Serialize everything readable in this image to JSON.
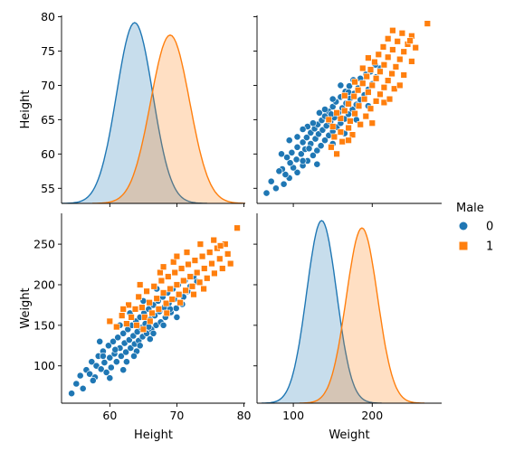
{
  "chart_data": {
    "type": "scatter",
    "kind": "pairplot",
    "variables": [
      "Height",
      "Weight"
    ],
    "hue": "Male",
    "legend": {
      "title": "Male",
      "placement": "right",
      "entries": [
        {
          "label": "0",
          "marker": "circle",
          "color": "#1f77b4"
        },
        {
          "label": "1",
          "marker": "square",
          "color": "#ff7f0e"
        }
      ]
    },
    "axes": {
      "Height": {
        "label": "Height",
        "range": [
          52.8,
          80.2
        ],
        "ticks": [
          55,
          60,
          65,
          70,
          75,
          80
        ],
        "xticks": [
          60,
          70,
          80
        ]
      },
      "Weight": {
        "label": "Weight",
        "range": [
          54,
          288
        ],
        "ticks": [
          100,
          150,
          200,
          250
        ],
        "xticks": [
          100,
          200
        ]
      }
    },
    "diagonal": {
      "type": "kde",
      "Height": [
        {
          "hue": "0",
          "mean": 63.7,
          "sd": 2.7
        },
        {
          "hue": "1",
          "mean": 69.0,
          "sd": 2.9
        }
      ],
      "Weight": [
        {
          "hue": "0",
          "mean": 135.9,
          "sd": 19.0
        },
        {
          "hue": "1",
          "mean": 187.0,
          "sd": 19.8
        }
      ]
    },
    "series": [
      {
        "name": "0",
        "color": "#1f77b4",
        "marker": "circle",
        "points": [
          [
            54.3,
            66
          ],
          [
            55.0,
            78
          ],
          [
            55.6,
            88
          ],
          [
            56.0,
            72
          ],
          [
            56.5,
            95
          ],
          [
            57.0,
            90
          ],
          [
            57.3,
            105
          ],
          [
            57.8,
            86
          ],
          [
            58.0,
            100
          ],
          [
            58.3,
            112
          ],
          [
            58.7,
            96
          ],
          [
            59.0,
            118
          ],
          [
            59.2,
            104
          ],
          [
            59.5,
            92
          ],
          [
            59.8,
            125
          ],
          [
            60.0,
            110
          ],
          [
            60.2,
            98
          ],
          [
            60.5,
            130
          ],
          [
            60.7,
            115
          ],
          [
            61.0,
            105
          ],
          [
            61.2,
            135
          ],
          [
            61.5,
            122
          ],
          [
            61.7,
            112
          ],
          [
            62.0,
            140
          ],
          [
            62.2,
            128
          ],
          [
            62.4,
            117
          ],
          [
            62.7,
            145
          ],
          [
            62.9,
            132
          ],
          [
            63.1,
            122
          ],
          [
            63.3,
            150
          ],
          [
            63.5,
            137
          ],
          [
            63.7,
            127
          ],
          [
            63.9,
            155
          ],
          [
            64.1,
            142
          ],
          [
            64.3,
            131
          ],
          [
            64.5,
            160
          ],
          [
            64.7,
            147
          ],
          [
            64.9,
            136
          ],
          [
            65.1,
            165
          ],
          [
            65.3,
            152
          ],
          [
            65.5,
            140
          ],
          [
            65.8,
            170
          ],
          [
            66.0,
            157
          ],
          [
            66.2,
            145
          ],
          [
            66.5,
            175
          ],
          [
            66.7,
            162
          ],
          [
            66.9,
            150
          ],
          [
            67.2,
            180
          ],
          [
            67.4,
            167
          ],
          [
            67.6,
            154
          ],
          [
            67.9,
            185
          ],
          [
            68.1,
            172
          ],
          [
            68.3,
            160
          ],
          [
            68.6,
            190
          ],
          [
            68.8,
            177
          ],
          [
            69.1,
            166
          ],
          [
            69.4,
            195
          ],
          [
            69.6,
            182
          ],
          [
            69.9,
            171
          ],
          [
            70.2,
            200
          ],
          [
            70.5,
            188
          ],
          [
            70.8,
            176
          ],
          [
            71.2,
            205
          ],
          [
            71.6,
            192
          ],
          [
            72.0,
            198
          ],
          [
            72.5,
            210
          ],
          [
            73.0,
            204
          ],
          [
            62.0,
            95
          ],
          [
            64.0,
            118
          ],
          [
            66.0,
            133
          ],
          [
            60.0,
            85
          ],
          [
            68.0,
            150
          ],
          [
            61.5,
            150
          ],
          [
            63.0,
            165
          ],
          [
            65.0,
            180
          ],
          [
            58.5,
            130
          ],
          [
            70.0,
            160
          ],
          [
            67.0,
            195
          ],
          [
            59.0,
            112
          ],
          [
            64.5,
            125
          ],
          [
            66.5,
            140
          ],
          [
            62.5,
            105
          ],
          [
            69.0,
            170
          ],
          [
            71.0,
            185
          ],
          [
            57.5,
            82
          ],
          [
            60.8,
            120
          ],
          [
            65.8,
            148
          ],
          [
            63.6,
            112
          ]
        ]
      },
      {
        "name": "1",
        "color": "#ff7f0e",
        "marker": "square",
        "points": [
          [
            60.0,
            155
          ],
          [
            61.0,
            148
          ],
          [
            61.8,
            162
          ],
          [
            62.5,
            152
          ],
          [
            62.8,
            175
          ],
          [
            63.2,
            160
          ],
          [
            63.8,
            170
          ],
          [
            64.0,
            150
          ],
          [
            64.3,
            185
          ],
          [
            64.8,
            172
          ],
          [
            65.2,
            160
          ],
          [
            65.5,
            192
          ],
          [
            65.9,
            178
          ],
          [
            66.3,
            165
          ],
          [
            66.6,
            198
          ],
          [
            67.0,
            183
          ],
          [
            67.3,
            170
          ],
          [
            67.7,
            205
          ],
          [
            68.0,
            190
          ],
          [
            68.4,
            177
          ],
          [
            68.7,
            210
          ],
          [
            69.0,
            195
          ],
          [
            69.3,
            182
          ],
          [
            69.7,
            215
          ],
          [
            70.0,
            200
          ],
          [
            70.3,
            188
          ],
          [
            70.7,
            220
          ],
          [
            71.0,
            205
          ],
          [
            71.3,
            193
          ],
          [
            71.7,
            225
          ],
          [
            72.0,
            210
          ],
          [
            72.3,
            198
          ],
          [
            72.7,
            230
          ],
          [
            73.0,
            215
          ],
          [
            73.4,
            203
          ],
          [
            73.8,
            235
          ],
          [
            74.1,
            220
          ],
          [
            74.5,
            208
          ],
          [
            74.9,
            240
          ],
          [
            75.2,
            226
          ],
          [
            75.6,
            214
          ],
          [
            76.0,
            245
          ],
          [
            76.4,
            232
          ],
          [
            76.8,
            220
          ],
          [
            77.2,
            250
          ],
          [
            77.6,
            238
          ],
          [
            78.0,
            226
          ],
          [
            79.0,
            270
          ],
          [
            66.0,
            155
          ],
          [
            68.5,
            165
          ],
          [
            70.5,
            178
          ],
          [
            72.5,
            188
          ],
          [
            67.5,
            215
          ],
          [
            69.5,
            228
          ],
          [
            71.5,
            240
          ],
          [
            64.5,
            200
          ],
          [
            73.5,
            250
          ],
          [
            75.5,
            255
          ],
          [
            62.0,
            170
          ],
          [
            65.0,
            145
          ],
          [
            70.0,
            235
          ],
          [
            74.0,
            195
          ],
          [
            76.5,
            248
          ],
          [
            68.0,
            222
          ]
        ]
      }
    ]
  }
}
